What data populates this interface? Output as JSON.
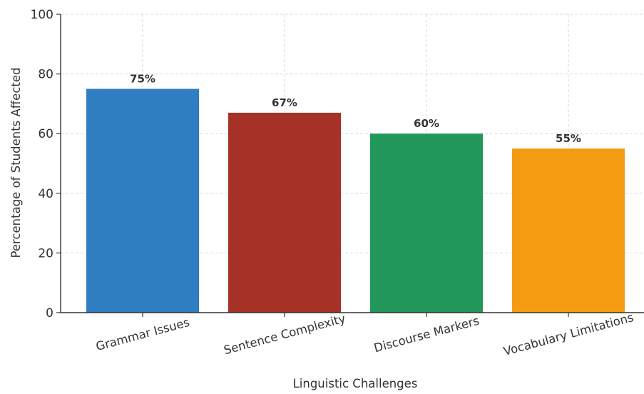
{
  "chart_data": {
    "type": "bar",
    "title": "",
    "xlabel": "Linguistic Challenges",
    "ylabel": "Percentage of Students Affected",
    "categories": [
      "Grammar Issues",
      "Sentence Complexity",
      "Discourse Markers",
      "Vocabulary Limitations"
    ],
    "values": [
      75,
      67,
      60,
      55
    ],
    "data_labels": [
      "75%",
      "67%",
      "60%",
      "55%"
    ],
    "colors": [
      "#2e7ec1",
      "#a63126",
      "#21985a",
      "#f39c12"
    ],
    "ylim": [
      0,
      100
    ],
    "yticks": [
      0,
      20,
      40,
      60,
      80,
      100
    ],
    "grid": true,
    "legend": "none"
  }
}
